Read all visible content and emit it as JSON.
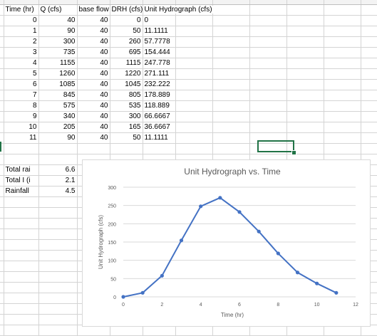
{
  "sheet": {
    "headers": [
      "Time (hr)",
      "Q (cfs)",
      "base flow",
      "DRH (cfs)",
      "Unit Hydrograph (cfs)"
    ],
    "rows": [
      [
        "0",
        "40",
        "40",
        "0",
        "0"
      ],
      [
        "1",
        "90",
        "40",
        "50",
        "11.1111"
      ],
      [
        "2",
        "300",
        "40",
        "260",
        "57.7778"
      ],
      [
        "3",
        "735",
        "40",
        "695",
        "154.444"
      ],
      [
        "4",
        "1155",
        "40",
        "1115",
        "247.778"
      ],
      [
        "5",
        "1260",
        "40",
        "1220",
        "271.111"
      ],
      [
        "6",
        "1085",
        "40",
        "1045",
        "232.222"
      ],
      [
        "7",
        "845",
        "40",
        "805",
        "178.889"
      ],
      [
        "8",
        "575",
        "40",
        "535",
        "118.889"
      ],
      [
        "9",
        "340",
        "40",
        "300",
        "66.6667"
      ],
      [
        "10",
        "205",
        "40",
        "165",
        "36.6667"
      ],
      [
        "11",
        "90",
        "40",
        "50",
        "11.1111"
      ]
    ],
    "summary": [
      {
        "label": "Total rai",
        "value": "6.6"
      },
      {
        "label": "Total I (i",
        "value": "2.1"
      },
      {
        "label": "Rainfall",
        "value": "4.5"
      }
    ]
  },
  "colors": {
    "accent": "#217346",
    "series": "#4472c4"
  },
  "chart_data": {
    "type": "scatter-line",
    "title": "Unit Hydrograph vs. Time",
    "xlabel": "Time (hr)",
    "ylabel": "Unit Hydrograph (cfs)",
    "xlim": [
      0,
      12
    ],
    "ylim": [
      0,
      300
    ],
    "xticks": [
      0,
      2,
      4,
      6,
      8,
      10,
      12
    ],
    "yticks": [
      0,
      50,
      100,
      150,
      200,
      250,
      300
    ],
    "grid": "horizontal",
    "x": [
      0,
      1,
      2,
      3,
      4,
      5,
      6,
      7,
      8,
      9,
      10,
      11
    ],
    "y": [
      0,
      11.1111,
      57.7778,
      154.444,
      247.778,
      271.111,
      232.222,
      178.889,
      118.889,
      66.6667,
      36.6667,
      11.1111
    ]
  }
}
